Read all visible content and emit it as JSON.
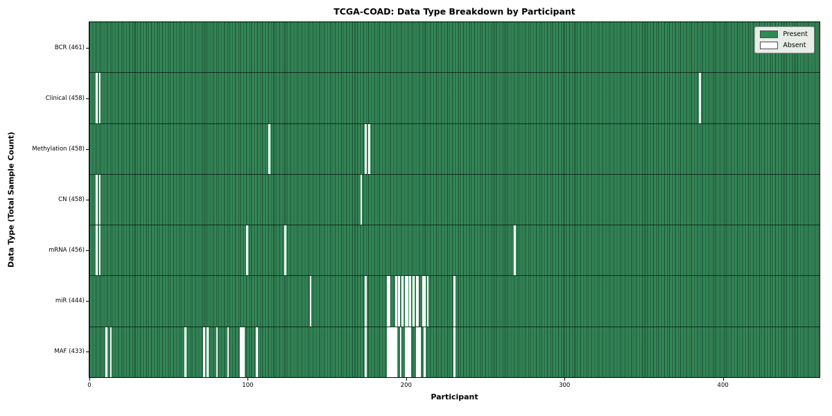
{
  "chart_data": {
    "type": "heatmap",
    "title": "TCGA-COAD: Data Type Breakdown by Participant",
    "xlabel": "Participant",
    "ylabel": "Data Type (Total Sample Count)",
    "n_participants": 461,
    "xlim": [
      0,
      461
    ],
    "x_ticks": [
      0,
      100,
      200,
      300,
      400
    ],
    "grid": false,
    "legend_position": "upper right",
    "rows": [
      {
        "label": "BCR (461)",
        "data_type": "BCR",
        "count": 461,
        "absent": []
      },
      {
        "label": "Clinical (458)",
        "data_type": "Clinical",
        "count": 458,
        "absent": [
          4,
          6,
          385
        ]
      },
      {
        "label": "Methylation (458)",
        "data_type": "Methylation",
        "count": 458,
        "absent": [
          113,
          174,
          176
        ]
      },
      {
        "label": "CN (458)",
        "data_type": "CN",
        "count": 458,
        "absent": [
          4,
          6,
          171
        ]
      },
      {
        "label": "mRNA (456)",
        "data_type": "mRNA",
        "count": 456,
        "absent": [
          4,
          6,
          99,
          123,
          268
        ]
      },
      {
        "label": "miR (444)",
        "data_type": "miR",
        "count": 444,
        "absent": [
          139,
          174,
          188,
          189,
          193,
          195,
          197,
          199,
          200,
          202,
          204,
          206,
          207,
          210,
          211,
          213,
          230
        ]
      },
      {
        "label": "MAF (433)",
        "data_type": "MAF",
        "count": 433,
        "absent": [
          10,
          13,
          60,
          72,
          74,
          80,
          87,
          95,
          96,
          97,
          105,
          174,
          188,
          189,
          190,
          191,
          192,
          193,
          196,
          199,
          200,
          201,
          202,
          206,
          207,
          208,
          211,
          230
        ]
      }
    ],
    "legend": {
      "items": [
        {
          "label": "Present",
          "color": "#2e8b57"
        },
        {
          "label": "Absent",
          "color": "#ffffff"
        }
      ]
    },
    "colors": {
      "present": "#3b9663",
      "absent": "#ffffff",
      "cell_edge": "rgba(10,40,24,0.75)",
      "row_edge": "rgba(0,0,0,0.65)",
      "legend_bg": "#e9ede7",
      "background": "#ffffff",
      "text": "#000000"
    }
  }
}
